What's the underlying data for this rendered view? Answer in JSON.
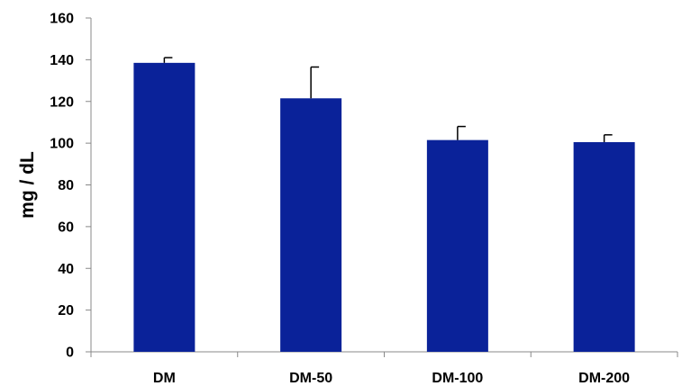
{
  "chart_data": {
    "type": "bar",
    "categories": [
      "DM",
      "DM-50",
      "DM-100",
      "DM-200"
    ],
    "values": [
      138.5,
      121.5,
      101.5,
      100.5
    ],
    "error_bars": [
      2.5,
      15,
      6.5,
      3.5
    ],
    "title": "",
    "xlabel": "",
    "ylabel": "mg / dL",
    "ylim": [
      0,
      160
    ],
    "yticks": [
      0,
      20,
      40,
      60,
      80,
      100,
      120,
      140,
      160
    ],
    "grid": false,
    "legend": "none",
    "bar_color": "#0A2299"
  }
}
